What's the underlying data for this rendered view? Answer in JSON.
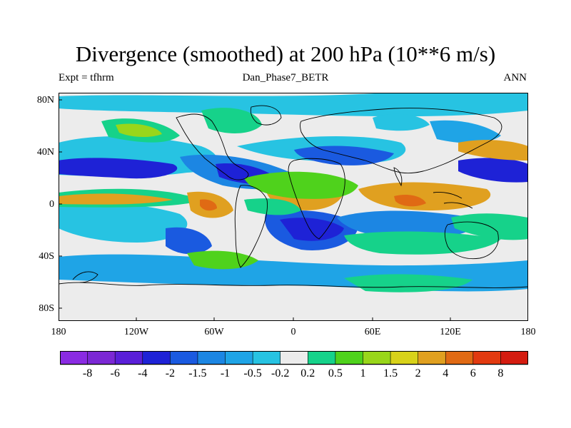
{
  "title": "Divergence (smoothed) at 200 hPa (10**6 m/s)",
  "subtitle_left": "Expt = tfhrm",
  "subtitle_center": "Dan_Phase7_BETR",
  "subtitle_right": "ANN",
  "lat_labels": [
    "80N",
    "40N",
    "0",
    "40S",
    "80S"
  ],
  "lon_labels": [
    "180",
    "120W",
    "60W",
    "0",
    "60E",
    "120E",
    "180"
  ],
  "colorbar": {
    "labels": [
      "-8",
      "-6",
      "-4",
      "-2",
      "-1.5",
      "-1",
      "-0.5",
      "-0.2",
      "0.2",
      "0.5",
      "1",
      "1.5",
      "2",
      "4",
      "6",
      "8"
    ],
    "colors": [
      "#8a2be2",
      "#7b28d4",
      "#5a1fd8",
      "#1e22d6",
      "#1a5ae0",
      "#1c86e3",
      "#1fa4e6",
      "#27c3e2",
      "#ececec",
      "#16d28a",
      "#4fd21c",
      "#99d61a",
      "#d8d21a",
      "#e0a020",
      "#e06a14",
      "#e23a10",
      "#d41c10"
    ]
  },
  "colors": {
    "ocean_neutral": "#ececec",
    "coastline": "#000000",
    "contour_edge": "#ffffff"
  }
}
